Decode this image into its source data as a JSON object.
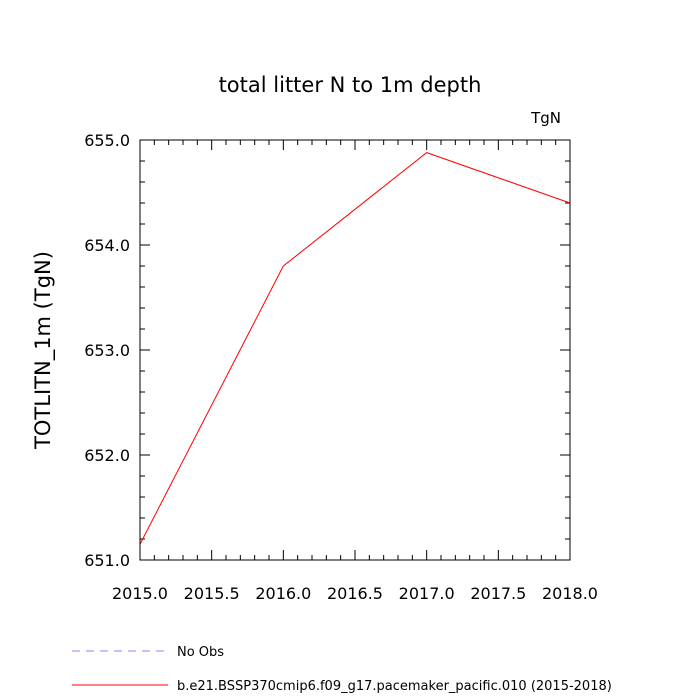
{
  "chart_data": {
    "type": "line",
    "title": "total litter N to 1m depth",
    "units_label": "TgN",
    "xlabel": "",
    "ylabel": "TOTLITN_1m  (TgN)",
    "xlim": [
      2015.0,
      2018.0
    ],
    "ylim": [
      651.0,
      655.0
    ],
    "x_ticks": [
      2015.0,
      2015.5,
      2016.0,
      2016.5,
      2017.0,
      2017.5,
      2018.0
    ],
    "x_tick_labels": [
      "2015.0",
      "2015.5",
      "2016.0",
      "2016.5",
      "2017.0",
      "2017.5",
      "2018.0"
    ],
    "x_minor_step": 0.1,
    "y_ticks": [
      651.0,
      652.0,
      653.0,
      654.0,
      655.0
    ],
    "y_tick_labels": [
      "651.0",
      "652.0",
      "653.0",
      "654.0",
      "655.0"
    ],
    "y_minor_step": 0.2,
    "grid": false,
    "series": [
      {
        "name": "b.e21.BSSP370cmip6.f09_g17.pacemaker_pacific.010 (2015-2018)",
        "color": "#ff0000",
        "dash": "solid",
        "x": [
          2015.0,
          2016.0,
          2017.0,
          2018.0
        ],
        "values": [
          651.15,
          653.8,
          654.88,
          654.4
        ]
      }
    ],
    "legend": [
      {
        "label": "No Obs",
        "color": "#8888ff",
        "dash": "dashed"
      },
      {
        "label": "b.e21.BSSP370cmip6.f09_g17.pacemaker_pacific.010 (2015-2018)",
        "color": "#ff0000",
        "dash": "solid"
      }
    ],
    "legend_position": "bottom-left"
  }
}
